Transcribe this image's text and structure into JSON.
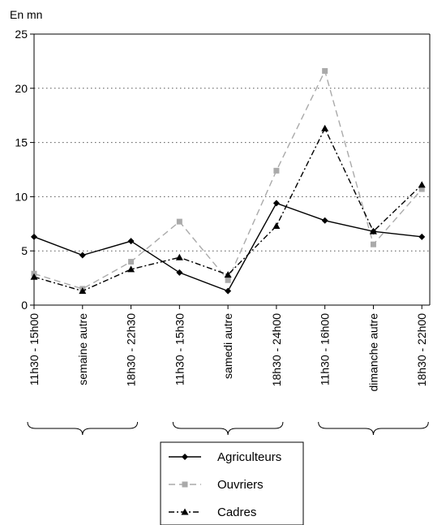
{
  "chart_data": {
    "type": "line",
    "ylabel": "En mn",
    "ylim": [
      0,
      25
    ],
    "yticks": [
      0,
      5,
      10,
      15,
      20,
      25
    ],
    "grid": "horizontal-dotted",
    "legend_position": "bottom",
    "categories": [
      "11h30 - 15h00",
      "semaine autre",
      "18h30 - 22h30",
      "11h30 - 15h30",
      "samedi autre",
      "18h30 - 24h00",
      "11h30 - 16h00",
      "dimanche autre",
      "18h30 - 22h00"
    ],
    "series": [
      {
        "name": "Agriculteurs",
        "color": "#000000",
        "dash": "solid",
        "marker": "diamond",
        "values": [
          6.3,
          4.6,
          5.9,
          3.0,
          1.3,
          9.4,
          7.8,
          6.8,
          6.3
        ]
      },
      {
        "name": "Ouvriers",
        "color": "#aaaaaa",
        "dash": "dashed",
        "marker": "square",
        "values": [
          2.9,
          1.5,
          4.0,
          7.7,
          2.3,
          12.4,
          21.6,
          5.6,
          10.7
        ]
      },
      {
        "name": "Cadres",
        "color": "#000000",
        "dash": "dashdot",
        "marker": "triangle",
        "values": [
          2.6,
          1.3,
          3.3,
          4.4,
          2.8,
          7.3,
          16.3,
          6.8,
          11.1
        ]
      }
    ]
  }
}
